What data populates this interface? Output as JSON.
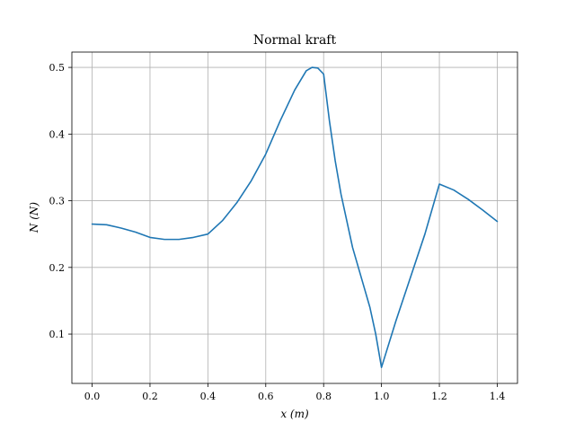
{
  "chart_data": {
    "type": "line",
    "title": "Normal kraft",
    "xlabel": "x (m)",
    "ylabel": "N (N)",
    "xlim": [
      -0.07,
      1.47
    ],
    "ylim": [
      0.026,
      0.523
    ],
    "xticks": [
      0.0,
      0.2,
      0.4,
      0.6,
      0.8,
      1.0,
      1.2,
      1.4
    ],
    "xtick_labels": [
      "0.0",
      "0.2",
      "0.4",
      "0.6",
      "0.8",
      "1.0",
      "1.2",
      "1.4"
    ],
    "yticks": [
      0.1,
      0.2,
      0.3,
      0.4,
      0.5
    ],
    "ytick_labels": [
      "0.1",
      "0.2",
      "0.3",
      "0.4",
      "0.5"
    ],
    "grid": true,
    "series": [
      {
        "color": "#1f77b4",
        "x": [
          0.0,
          0.05,
          0.1,
          0.15,
          0.2,
          0.25,
          0.3,
          0.35,
          0.4,
          0.45,
          0.5,
          0.55,
          0.6,
          0.65,
          0.7,
          0.74,
          0.76,
          0.78,
          0.8,
          0.82,
          0.84,
          0.86,
          0.88,
          0.9,
          0.92,
          0.94,
          0.96,
          0.98,
          1.0,
          1.05,
          1.1,
          1.15,
          1.2,
          1.25,
          1.3,
          1.35,
          1.4
        ],
        "y": [
          0.265,
          0.264,
          0.259,
          0.253,
          0.245,
          0.242,
          0.242,
          0.245,
          0.25,
          0.27,
          0.297,
          0.33,
          0.37,
          0.42,
          0.466,
          0.495,
          0.5,
          0.499,
          0.49,
          0.42,
          0.36,
          0.31,
          0.27,
          0.23,
          0.2,
          0.17,
          0.14,
          0.1,
          0.05,
          0.12,
          0.185,
          0.25,
          0.325,
          0.316,
          0.302,
          0.286,
          0.269
        ]
      }
    ]
  }
}
